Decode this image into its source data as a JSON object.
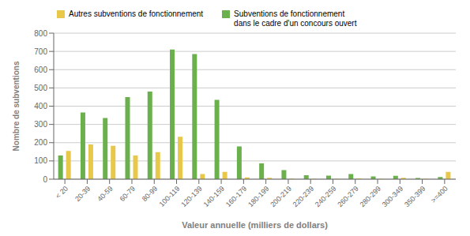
{
  "chart_data": {
    "type": "bar",
    "categories": [
      "< 20",
      "20-39",
      "40-59",
      "60-79",
      "80-99",
      "100-119",
      "120-139",
      "140-159",
      "160-179",
      "180-199",
      "200-219",
      "220-239",
      "240-259",
      "260-279",
      "280-299",
      "300-349",
      "350-399",
      ">=400"
    ],
    "series": [
      {
        "name": "Subventions de fonctionnement\ndans le cadre d'un concours ouvert",
        "color": "#6ab04c",
        "values": [
          130,
          365,
          335,
          450,
          480,
          710,
          685,
          435,
          180,
          87,
          50,
          22,
          20,
          28,
          15,
          18,
          7,
          12
        ]
      },
      {
        "name": "Autres subventions de fonctionnement",
        "color": "#e8c84a",
        "values": [
          155,
          190,
          183,
          130,
          148,
          232,
          28,
          40,
          10,
          8,
          3,
          2,
          2,
          4,
          2,
          8,
          2,
          40
        ]
      }
    ],
    "xlabel": "Valeur annuelle (milliers de dollars)",
    "ylabel": "Nombre de subventions",
    "ylim": [
      0,
      800
    ],
    "yticks": [
      0,
      100,
      200,
      300,
      400,
      500,
      600,
      700,
      800
    ],
    "grid": true,
    "legend": "top"
  }
}
